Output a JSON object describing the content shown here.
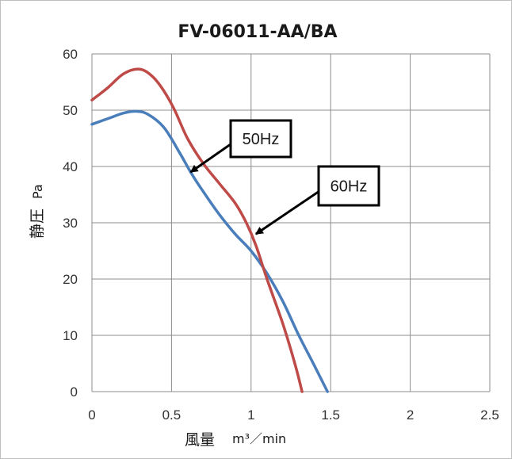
{
  "chart_data": {
    "type": "line",
    "title": "FV-06011-AA/BA",
    "xlabel": "風量",
    "xlabel_unit": "m³／min",
    "ylabel": "静圧",
    "ylabel_unit": "Pa",
    "xlim": [
      0,
      2.5
    ],
    "ylim": [
      0,
      60
    ],
    "x_ticks": [
      "0",
      "0.5",
      "1",
      "1.5",
      "2",
      "2.5"
    ],
    "y_ticks": [
      "0",
      "10",
      "20",
      "30",
      "40",
      "50",
      "60"
    ],
    "grid": true,
    "series": [
      {
        "name": "50Hz",
        "color": "#4a7ebb",
        "points": [
          [
            0,
            47.5
          ],
          [
            0.1,
            48.5
          ],
          [
            0.2,
            49.5
          ],
          [
            0.28,
            49.8
          ],
          [
            0.35,
            49.3
          ],
          [
            0.45,
            47.0
          ],
          [
            0.55,
            42.5
          ],
          [
            0.62,
            39.0
          ],
          [
            0.7,
            35.5
          ],
          [
            0.8,
            31.5
          ],
          [
            0.9,
            28.0
          ],
          [
            1.0,
            25.0
          ],
          [
            1.1,
            21.0
          ],
          [
            1.2,
            16.0
          ],
          [
            1.3,
            10.0
          ],
          [
            1.4,
            4.5
          ],
          [
            1.48,
            0
          ]
        ]
      },
      {
        "name": "60Hz",
        "color": "#be4b48",
        "points": [
          [
            0,
            51.8
          ],
          [
            0.1,
            54.0
          ],
          [
            0.2,
            56.5
          ],
          [
            0.3,
            57.3
          ],
          [
            0.38,
            56.0
          ],
          [
            0.45,
            53.5
          ],
          [
            0.52,
            50.0
          ],
          [
            0.6,
            45.0
          ],
          [
            0.7,
            40.5
          ],
          [
            0.8,
            37.0
          ],
          [
            0.9,
            33.5
          ],
          [
            0.97,
            30.0
          ],
          [
            1.03,
            26.0
          ],
          [
            1.1,
            20.0
          ],
          [
            1.2,
            12.0
          ],
          [
            1.28,
            4.5
          ],
          [
            1.32,
            0
          ]
        ]
      }
    ],
    "annotations": [
      {
        "text": "50Hz",
        "arrow_to": [
          0.62,
          39.0
        ]
      },
      {
        "text": "60Hz",
        "arrow_to": [
          1.03,
          28.0
        ]
      }
    ]
  }
}
